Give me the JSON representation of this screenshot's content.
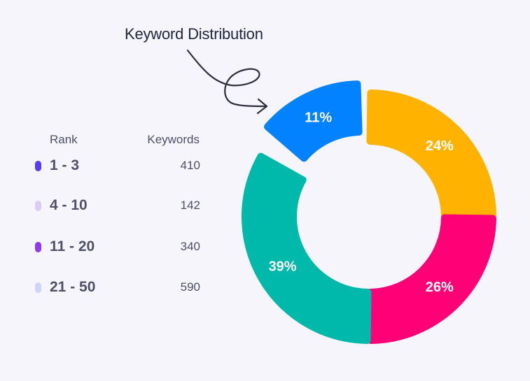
{
  "title": "Keyword Distribution",
  "legend_table": {
    "header_rank": "Rank",
    "header_keywords": "Keywords",
    "rows": [
      {
        "rank": "1 - 3",
        "keywords": "410",
        "color": "#5b3cf0"
      },
      {
        "rank": "4 - 10",
        "keywords": "142",
        "color": "#dccbf4"
      },
      {
        "rank": "11 - 20",
        "keywords": "340",
        "color": "#8d3cf2"
      },
      {
        "rank": "21 - 50",
        "keywords": "590",
        "color": "#cfd3f8"
      }
    ]
  },
  "chart_data": {
    "type": "pie",
    "style": "donut",
    "title": "Keyword Distribution",
    "slices": [
      {
        "label": "11%",
        "value": 11,
        "color": "#0382ff"
      },
      {
        "label": "24%",
        "value": 24,
        "color": "#ffb300"
      },
      {
        "label": "26%",
        "value": 26,
        "color": "#ff0077"
      },
      {
        "label": "39%",
        "value": 39,
        "color": "#00b9ab"
      }
    ]
  }
}
